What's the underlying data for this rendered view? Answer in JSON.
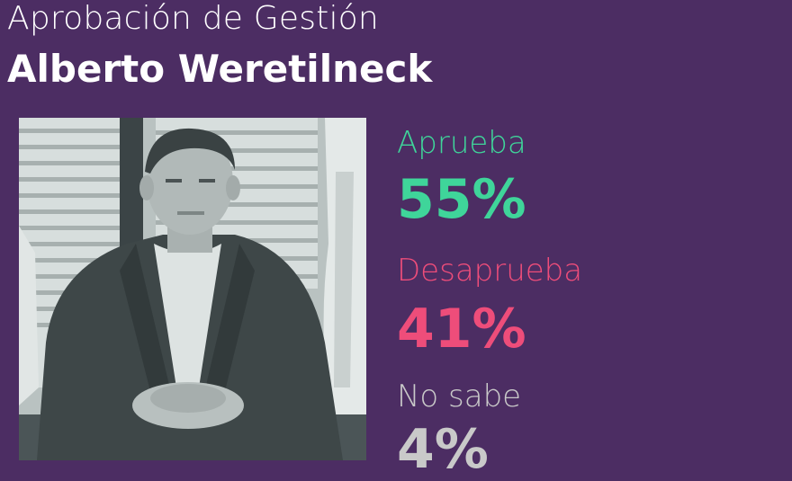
{
  "header": {
    "subtitle": "Aprobación de Gestión",
    "title": "Alberto Weretilneck"
  },
  "photo": {
    "description_icon": "person-photo"
  },
  "colors": {
    "background": "#4c2d63",
    "aprueba": "#3fd59a",
    "desaprueba": "#ee4d7a",
    "no_sabe": "#c9c9c9",
    "title": "#ffffff"
  },
  "chart_data": {
    "type": "table",
    "categories": [
      "Aprueba",
      "Desaprueba",
      "No sabe"
    ],
    "values": [
      55,
      41,
      4
    ],
    "value_labels": [
      "55%",
      "41%",
      "4%"
    ],
    "title": "Alberto Weretilneck",
    "subtitle": "Aprobación de Gestión"
  }
}
